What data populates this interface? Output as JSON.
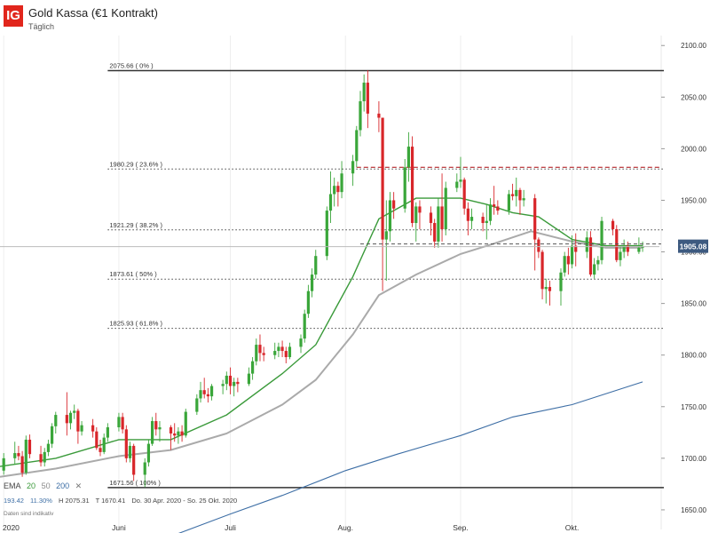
{
  "header": {
    "logo_text": "IG",
    "title": "Gold Kassa (€1 Kontrakt)",
    "subtitle": "Täglich"
  },
  "indicators": {
    "label": "EMA",
    "ema_periods": [
      "20",
      "50",
      "200"
    ],
    "close_symbol": "✕",
    "colors": {
      "ema20": "#3a9a3a",
      "ema50": "#aaaaaa",
      "ema200": "#3d6ea5"
    }
  },
  "stats": {
    "range": "193.42",
    "range_pct": "11.30%",
    "high": "H 2075.31",
    "low": "T 1670.41",
    "period": "Do. 30 Apr. 2020 - So. 25 Okt. 2020"
  },
  "disclaimer": "Daten sind indikativ",
  "chart_data": {
    "type": "candlestick",
    "title": "Gold Kassa (€1 Kontrakt)",
    "subtitle": "Täglich",
    "y_ticks": [
      "2100.00",
      "2050.00",
      "2000.00",
      "1950.00",
      "1900.00",
      "1850.00",
      "1800.00",
      "1750.00",
      "1700.00",
      "1650.00"
    ],
    "ylim": [
      1631,
      2120
    ],
    "x_labels": [
      {
        "label": "2020",
        "date": "2020-05-01"
      },
      {
        "label": "Juni",
        "date": "2020-06-01"
      },
      {
        "label": "Juli",
        "date": "2020-07-01"
      },
      {
        "label": "Aug.",
        "date": "2020-08-01"
      },
      {
        "label": "Sep.",
        "date": "2020-09-01"
      },
      {
        "label": "Okt.",
        "date": "2020-10-01"
      }
    ],
    "xlim": [
      "2020-04-30",
      "2020-10-25"
    ],
    "last_price": "1905.08",
    "last_price_value": 1905.08,
    "fibonacci": [
      {
        "label": "2075.66 ( 0% )",
        "value": 2075.66,
        "style": "solid"
      },
      {
        "label": "1980.29 ( 23.6% )",
        "value": 1980.29,
        "style": "dotted"
      },
      {
        "label": "1921.29 ( 38.2% )",
        "value": 1921.29,
        "style": "dotted"
      },
      {
        "label": "1873.61 ( 50% )",
        "value": 1873.61,
        "style": "dotted"
      },
      {
        "label": "1825.93 ( 61.8% )",
        "value": 1825.93,
        "style": "dotted"
      },
      {
        "label": "1671.56 ( 100% )",
        "value": 1671.56,
        "style": "solid"
      }
    ],
    "resistance": {
      "value": 1982,
      "from": "2020-08-04",
      "to": "2020-10-25"
    },
    "candles": [
      {
        "d": "2020-05-01",
        "o": 1688,
        "h": 1705,
        "l": 1684,
        "c": 1700
      },
      {
        "d": "2020-05-04",
        "o": 1700,
        "h": 1716,
        "l": 1694,
        "c": 1705
      },
      {
        "d": "2020-05-05",
        "o": 1705,
        "h": 1712,
        "l": 1698,
        "c": 1702
      },
      {
        "d": "2020-05-06",
        "o": 1702,
        "h": 1707,
        "l": 1682,
        "c": 1686
      },
      {
        "d": "2020-05-07",
        "o": 1686,
        "h": 1722,
        "l": 1684,
        "c": 1718
      },
      {
        "d": "2020-05-08",
        "o": 1718,
        "h": 1723,
        "l": 1700,
        "c": 1704
      },
      {
        "d": "2020-05-11",
        "o": 1704,
        "h": 1712,
        "l": 1692,
        "c": 1696
      },
      {
        "d": "2020-05-12",
        "o": 1696,
        "h": 1710,
        "l": 1692,
        "c": 1706
      },
      {
        "d": "2020-05-13",
        "o": 1706,
        "h": 1718,
        "l": 1702,
        "c": 1714
      },
      {
        "d": "2020-05-14",
        "o": 1714,
        "h": 1734,
        "l": 1710,
        "c": 1731
      },
      {
        "d": "2020-05-15",
        "o": 1731,
        "h": 1745,
        "l": 1724,
        "c": 1742
      },
      {
        "d": "2020-05-18",
        "o": 1742,
        "h": 1764,
        "l": 1722,
        "c": 1734
      },
      {
        "d": "2020-05-19",
        "o": 1734,
        "h": 1746,
        "l": 1728,
        "c": 1744
      },
      {
        "d": "2020-05-20",
        "o": 1744,
        "h": 1752,
        "l": 1738,
        "c": 1746
      },
      {
        "d": "2020-05-21",
        "o": 1746,
        "h": 1748,
        "l": 1714,
        "c": 1726
      },
      {
        "d": "2020-05-22",
        "o": 1726,
        "h": 1736,
        "l": 1722,
        "c": 1732
      },
      {
        "d": "2020-05-25",
        "o": 1732,
        "h": 1738,
        "l": 1720,
        "c": 1726
      },
      {
        "d": "2020-05-26",
        "o": 1726,
        "h": 1730,
        "l": 1708,
        "c": 1710
      },
      {
        "d": "2020-05-27",
        "o": 1710,
        "h": 1718,
        "l": 1702,
        "c": 1706
      },
      {
        "d": "2020-05-28",
        "o": 1706,
        "h": 1724,
        "l": 1704,
        "c": 1720
      },
      {
        "d": "2020-05-29",
        "o": 1720,
        "h": 1734,
        "l": 1716,
        "c": 1730
      },
      {
        "d": "2020-06-01",
        "o": 1730,
        "h": 1744,
        "l": 1726,
        "c": 1740
      },
      {
        "d": "2020-06-02",
        "o": 1740,
        "h": 1744,
        "l": 1724,
        "c": 1728
      },
      {
        "d": "2020-06-03",
        "o": 1728,
        "h": 1732,
        "l": 1696,
        "c": 1700
      },
      {
        "d": "2020-06-04",
        "o": 1700,
        "h": 1716,
        "l": 1696,
        "c": 1712
      },
      {
        "d": "2020-06-05",
        "o": 1712,
        "h": 1714,
        "l": 1678,
        "c": 1684
      },
      {
        "d": "2020-06-08",
        "o": 1684,
        "h": 1700,
        "l": 1672,
        "c": 1696
      },
      {
        "d": "2020-06-09",
        "o": 1696,
        "h": 1718,
        "l": 1692,
        "c": 1714
      },
      {
        "d": "2020-06-10",
        "o": 1714,
        "h": 1740,
        "l": 1712,
        "c": 1736
      },
      {
        "d": "2020-06-11",
        "o": 1736,
        "h": 1744,
        "l": 1722,
        "c": 1728
      },
      {
        "d": "2020-06-12",
        "o": 1728,
        "h": 1736,
        "l": 1716,
        "c": 1730
      },
      {
        "d": "2020-06-15",
        "o": 1730,
        "h": 1732,
        "l": 1708,
        "c": 1724
      },
      {
        "d": "2020-06-16",
        "o": 1724,
        "h": 1734,
        "l": 1716,
        "c": 1722
      },
      {
        "d": "2020-06-17",
        "o": 1722,
        "h": 1730,
        "l": 1714,
        "c": 1726
      },
      {
        "d": "2020-06-18",
        "o": 1726,
        "h": 1732,
        "l": 1716,
        "c": 1722
      },
      {
        "d": "2020-06-19",
        "o": 1722,
        "h": 1748,
        "l": 1720,
        "c": 1745
      },
      {
        "d": "2020-06-22",
        "o": 1745,
        "h": 1762,
        "l": 1742,
        "c": 1758
      },
      {
        "d": "2020-06-23",
        "o": 1758,
        "h": 1774,
        "l": 1754,
        "c": 1766
      },
      {
        "d": "2020-06-24",
        "o": 1766,
        "h": 1778,
        "l": 1758,
        "c": 1762
      },
      {
        "d": "2020-06-25",
        "o": 1762,
        "h": 1768,
        "l": 1754,
        "c": 1760
      },
      {
        "d": "2020-06-26",
        "o": 1760,
        "h": 1772,
        "l": 1756,
        "c": 1770
      },
      {
        "d": "2020-06-29",
        "o": 1770,
        "h": 1776,
        "l": 1762,
        "c": 1772
      },
      {
        "d": "2020-06-30",
        "o": 1772,
        "h": 1784,
        "l": 1766,
        "c": 1780
      },
      {
        "d": "2020-07-01",
        "o": 1780,
        "h": 1788,
        "l": 1762,
        "c": 1770
      },
      {
        "d": "2020-07-02",
        "o": 1770,
        "h": 1778,
        "l": 1760,
        "c": 1774
      },
      {
        "d": "2020-07-03",
        "o": 1774,
        "h": 1778,
        "l": 1764,
        "c": 1772
      },
      {
        "d": "2020-07-06",
        "o": 1772,
        "h": 1788,
        "l": 1770,
        "c": 1782
      },
      {
        "d": "2020-07-07",
        "o": 1782,
        "h": 1798,
        "l": 1776,
        "c": 1794
      },
      {
        "d": "2020-07-08",
        "o": 1794,
        "h": 1816,
        "l": 1790,
        "c": 1810
      },
      {
        "d": "2020-07-09",
        "o": 1810,
        "h": 1820,
        "l": 1794,
        "c": 1802
      },
      {
        "d": "2020-07-10",
        "o": 1802,
        "h": 1808,
        "l": 1794,
        "c": 1800
      },
      {
        "d": "2020-07-13",
        "o": 1800,
        "h": 1812,
        "l": 1796,
        "c": 1804
      },
      {
        "d": "2020-07-14",
        "o": 1804,
        "h": 1812,
        "l": 1798,
        "c": 1808
      },
      {
        "d": "2020-07-15",
        "o": 1808,
        "h": 1814,
        "l": 1798,
        "c": 1804
      },
      {
        "d": "2020-07-16",
        "o": 1804,
        "h": 1808,
        "l": 1792,
        "c": 1798
      },
      {
        "d": "2020-07-17",
        "o": 1798,
        "h": 1812,
        "l": 1796,
        "c": 1808
      },
      {
        "d": "2020-07-20",
        "o": 1808,
        "h": 1820,
        "l": 1802,
        "c": 1816
      },
      {
        "d": "2020-07-21",
        "o": 1816,
        "h": 1844,
        "l": 1812,
        "c": 1840
      },
      {
        "d": "2020-07-22",
        "o": 1840,
        "h": 1868,
        "l": 1836,
        "c": 1862
      },
      {
        "d": "2020-07-23",
        "o": 1862,
        "h": 1884,
        "l": 1856,
        "c": 1878
      },
      {
        "d": "2020-07-24",
        "o": 1878,
        "h": 1902,
        "l": 1874,
        "c": 1896
      },
      {
        "d": "2020-07-27",
        "o": 1896,
        "h": 1944,
        "l": 1892,
        "c": 1940
      },
      {
        "d": "2020-07-28",
        "o": 1940,
        "h": 1978,
        "l": 1928,
        "c": 1956
      },
      {
        "d": "2020-07-29",
        "o": 1956,
        "h": 1972,
        "l": 1944,
        "c": 1964
      },
      {
        "d": "2020-07-30",
        "o": 1964,
        "h": 1968,
        "l": 1944,
        "c": 1958
      },
      {
        "d": "2020-07-31",
        "o": 1958,
        "h": 1988,
        "l": 1952,
        "c": 1976
      },
      {
        "d": "2020-08-03",
        "o": 1976,
        "h": 1994,
        "l": 1964,
        "c": 1988
      },
      {
        "d": "2020-08-04",
        "o": 1988,
        "h": 2022,
        "l": 1982,
        "c": 2018
      },
      {
        "d": "2020-08-05",
        "o": 2018,
        "h": 2056,
        "l": 2012,
        "c": 2046
      },
      {
        "d": "2020-08-06",
        "o": 2046,
        "h": 2072,
        "l": 2036,
        "c": 2064
      },
      {
        "d": "2020-08-07",
        "o": 2064,
        "h": 2076,
        "l": 2020,
        "c": 2034
      },
      {
        "d": "2020-08-10",
        "o": 2034,
        "h": 2046,
        "l": 2016,
        "c": 2030
      },
      {
        "d": "2020-08-11",
        "o": 2030,
        "h": 2030,
        "l": 1862,
        "c": 1912
      },
      {
        "d": "2020-08-12",
        "o": 1912,
        "h": 1950,
        "l": 1872,
        "c": 1920
      },
      {
        "d": "2020-08-13",
        "o": 1920,
        "h": 1958,
        "l": 1910,
        "c": 1950
      },
      {
        "d": "2020-08-14",
        "o": 1950,
        "h": 1958,
        "l": 1932,
        "c": 1942
      },
      {
        "d": "2020-08-17",
        "o": 1942,
        "h": 1990,
        "l": 1938,
        "c": 1982
      },
      {
        "d": "2020-08-18",
        "o": 1982,
        "h": 2016,
        "l": 1968,
        "c": 2002
      },
      {
        "d": "2020-08-19",
        "o": 2002,
        "h": 2012,
        "l": 1924,
        "c": 1928
      },
      {
        "d": "2020-08-20",
        "o": 1928,
        "h": 1948,
        "l": 1910,
        "c": 1944
      },
      {
        "d": "2020-08-21",
        "o": 1944,
        "h": 1950,
        "l": 1922,
        "c": 1938
      },
      {
        "d": "2020-08-24",
        "o": 1938,
        "h": 1944,
        "l": 1916,
        "c": 1928
      },
      {
        "d": "2020-08-25",
        "o": 1928,
        "h": 1932,
        "l": 1904,
        "c": 1910
      },
      {
        "d": "2020-08-26",
        "o": 1910,
        "h": 1952,
        "l": 1904,
        "c": 1944
      },
      {
        "d": "2020-08-27",
        "o": 1944,
        "h": 1976,
        "l": 1910,
        "c": 1922
      },
      {
        "d": "2020-08-28",
        "o": 1922,
        "h": 1968,
        "l": 1916,
        "c": 1962
      },
      {
        "d": "2020-08-31",
        "o": 1962,
        "h": 1976,
        "l": 1958,
        "c": 1968
      },
      {
        "d": "2020-09-01",
        "o": 1968,
        "h": 1992,
        "l": 1962,
        "c": 1970
      },
      {
        "d": "2020-09-02",
        "o": 1970,
        "h": 1972,
        "l": 1936,
        "c": 1942
      },
      {
        "d": "2020-09-03",
        "o": 1942,
        "h": 1948,
        "l": 1916,
        "c": 1930
      },
      {
        "d": "2020-09-04",
        "o": 1930,
        "h": 1942,
        "l": 1922,
        "c": 1934
      },
      {
        "d": "2020-09-07",
        "o": 1934,
        "h": 1938,
        "l": 1920,
        "c": 1928
      },
      {
        "d": "2020-09-08",
        "o": 1928,
        "h": 1946,
        "l": 1912,
        "c": 1930
      },
      {
        "d": "2020-09-09",
        "o": 1930,
        "h": 1952,
        "l": 1926,
        "c": 1946
      },
      {
        "d": "2020-09-10",
        "o": 1946,
        "h": 1964,
        "l": 1936,
        "c": 1944
      },
      {
        "d": "2020-09-11",
        "o": 1944,
        "h": 1950,
        "l": 1936,
        "c": 1940
      },
      {
        "d": "2020-09-14",
        "o": 1940,
        "h": 1960,
        "l": 1936,
        "c": 1956
      },
      {
        "d": "2020-09-15",
        "o": 1956,
        "h": 1966,
        "l": 1950,
        "c": 1954
      },
      {
        "d": "2020-09-16",
        "o": 1954,
        "h": 1972,
        "l": 1944,
        "c": 1960
      },
      {
        "d": "2020-09-17",
        "o": 1960,
        "h": 1962,
        "l": 1936,
        "c": 1950
      },
      {
        "d": "2020-09-18",
        "o": 1950,
        "h": 1960,
        "l": 1944,
        "c": 1952
      },
      {
        "d": "2020-09-21",
        "o": 1952,
        "h": 1956,
        "l": 1882,
        "c": 1912
      },
      {
        "d": "2020-09-22",
        "o": 1912,
        "h": 1914,
        "l": 1894,
        "c": 1900
      },
      {
        "d": "2020-09-23",
        "o": 1900,
        "h": 1902,
        "l": 1854,
        "c": 1864
      },
      {
        "d": "2020-09-24",
        "o": 1864,
        "h": 1874,
        "l": 1850,
        "c": 1866
      },
      {
        "d": "2020-09-25",
        "o": 1866,
        "h": 1872,
        "l": 1848,
        "c": 1862
      },
      {
        "d": "2020-09-28",
        "o": 1862,
        "h": 1884,
        "l": 1848,
        "c": 1880
      },
      {
        "d": "2020-09-29",
        "o": 1880,
        "h": 1900,
        "l": 1876,
        "c": 1896
      },
      {
        "d": "2020-09-30",
        "o": 1896,
        "h": 1904,
        "l": 1878,
        "c": 1888
      },
      {
        "d": "2020-10-01",
        "o": 1888,
        "h": 1916,
        "l": 1884,
        "c": 1906
      },
      {
        "d": "2020-10-02",
        "o": 1906,
        "h": 1918,
        "l": 1886,
        "c": 1900
      },
      {
        "d": "2020-10-05",
        "o": 1900,
        "h": 1920,
        "l": 1894,
        "c": 1914
      },
      {
        "d": "2020-10-06",
        "o": 1914,
        "h": 1920,
        "l": 1876,
        "c": 1878
      },
      {
        "d": "2020-10-07",
        "o": 1878,
        "h": 1894,
        "l": 1874,
        "c": 1888
      },
      {
        "d": "2020-10-08",
        "o": 1888,
        "h": 1896,
        "l": 1882,
        "c": 1892
      },
      {
        "d": "2020-10-09",
        "o": 1892,
        "h": 1934,
        "l": 1888,
        "c": 1930
      },
      {
        "d": "2020-10-12",
        "o": 1930,
        "h": 1932,
        "l": 1916,
        "c": 1922
      },
      {
        "d": "2020-10-13",
        "o": 1922,
        "h": 1926,
        "l": 1890,
        "c": 1892
      },
      {
        "d": "2020-10-14",
        "o": 1892,
        "h": 1906,
        "l": 1886,
        "c": 1900
      },
      {
        "d": "2020-10-15",
        "o": 1900,
        "h": 1912,
        "l": 1894,
        "c": 1906
      },
      {
        "d": "2020-10-16",
        "o": 1906,
        "h": 1910,
        "l": 1896,
        "c": 1900
      },
      {
        "d": "2020-10-19",
        "o": 1900,
        "h": 1914,
        "l": 1898,
        "c": 1904
      },
      {
        "d": "2020-10-20",
        "o": 1904,
        "h": 1910,
        "l": 1900,
        "c": 1905
      }
    ],
    "ema20": [
      {
        "d": "2020-04-30",
        "v": 1692
      },
      {
        "d": "2020-05-15",
        "v": 1700
      },
      {
        "d": "2020-06-01",
        "v": 1718
      },
      {
        "d": "2020-06-15",
        "v": 1718
      },
      {
        "d": "2020-06-30",
        "v": 1742
      },
      {
        "d": "2020-07-15",
        "v": 1782
      },
      {
        "d": "2020-07-24",
        "v": 1810
      },
      {
        "d": "2020-08-03",
        "v": 1876
      },
      {
        "d": "2020-08-10",
        "v": 1932
      },
      {
        "d": "2020-08-20",
        "v": 1952
      },
      {
        "d": "2020-09-01",
        "v": 1952
      },
      {
        "d": "2020-09-08",
        "v": 1946
      },
      {
        "d": "2020-09-15",
        "v": 1938
      },
      {
        "d": "2020-09-22",
        "v": 1934
      },
      {
        "d": "2020-10-01",
        "v": 1912
      },
      {
        "d": "2020-10-10",
        "v": 1906
      },
      {
        "d": "2020-10-20",
        "v": 1906
      }
    ],
    "ema50": [
      {
        "d": "2020-04-30",
        "v": 1682
      },
      {
        "d": "2020-05-15",
        "v": 1690
      },
      {
        "d": "2020-06-01",
        "v": 1702
      },
      {
        "d": "2020-06-15",
        "v": 1708
      },
      {
        "d": "2020-06-30",
        "v": 1724
      },
      {
        "d": "2020-07-15",
        "v": 1752
      },
      {
        "d": "2020-07-24",
        "v": 1776
      },
      {
        "d": "2020-08-03",
        "v": 1820
      },
      {
        "d": "2020-08-10",
        "v": 1858
      },
      {
        "d": "2020-08-20",
        "v": 1878
      },
      {
        "d": "2020-09-01",
        "v": 1898
      },
      {
        "d": "2020-09-10",
        "v": 1908
      },
      {
        "d": "2020-09-20",
        "v": 1920
      },
      {
        "d": "2020-10-01",
        "v": 1910
      },
      {
        "d": "2020-10-10",
        "v": 1904
      },
      {
        "d": "2020-10-20",
        "v": 1904
      }
    ],
    "ema200": [
      {
        "d": "2020-06-17",
        "v": 1627
      },
      {
        "d": "2020-07-01",
        "v": 1646
      },
      {
        "d": "2020-07-15",
        "v": 1664
      },
      {
        "d": "2020-08-01",
        "v": 1688
      },
      {
        "d": "2020-08-15",
        "v": 1704
      },
      {
        "d": "2020-09-01",
        "v": 1722
      },
      {
        "d": "2020-09-15",
        "v": 1740
      },
      {
        "d": "2020-10-01",
        "v": 1752
      },
      {
        "d": "2020-10-20",
        "v": 1774
      }
    ],
    "grid": false
  }
}
